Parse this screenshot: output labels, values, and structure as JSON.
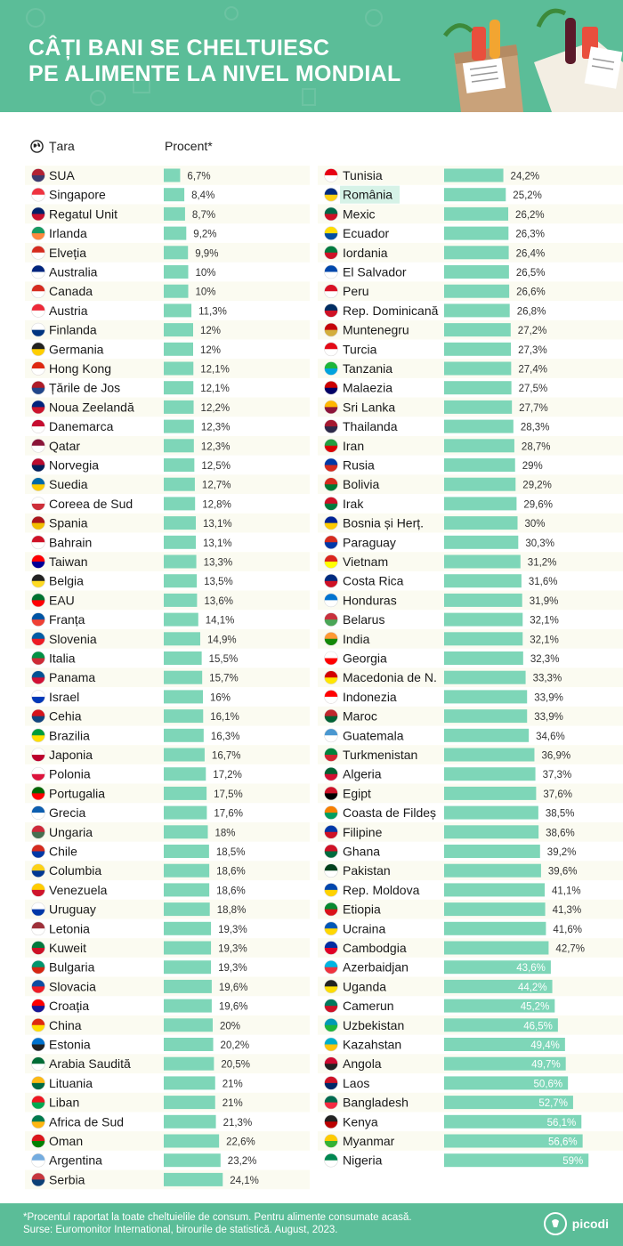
{
  "header": {
    "title_line1": "Câți bani se cheltuiesc",
    "title_line2": "pe alimente la nivel mondial"
  },
  "columns": {
    "country": "Țara",
    "percent": "Procent*"
  },
  "colors": {
    "brand": "#5bbd98",
    "bar": "#7ed6b8",
    "row_stripe": "#fbfbf1",
    "highlight": "#d6f2e7"
  },
  "highlighted_country": "România",
  "chart_data": {
    "type": "bar",
    "orientation": "horizontal",
    "xlim": [
      0,
      60
    ],
    "unit": "%",
    "categories": [
      "SUA",
      "Singapore",
      "Regatul Unit",
      "Irlanda",
      "Elveția",
      "Australia",
      "Canada",
      "Austria",
      "Finlanda",
      "Germania",
      "Hong Kong",
      "Țările de Jos",
      "Noua Zeelandă",
      "Danemarca",
      "Qatar",
      "Norvegia",
      "Suedia",
      "Coreea de Sud",
      "Spania",
      "Bahrain",
      "Taiwan",
      "Belgia",
      "EAU",
      "Franța",
      "Slovenia",
      "Italia",
      "Panama",
      "Israel",
      "Cehia",
      "Brazilia",
      "Japonia",
      "Polonia",
      "Portugalia",
      "Grecia",
      "Ungaria",
      "Chile",
      "Columbia",
      "Venezuela",
      "Uruguay",
      "Letonia",
      "Kuweit",
      "Bulgaria",
      "Slovacia",
      "Croația",
      "China",
      "Estonia",
      "Arabia Saudită",
      "Lituania",
      "Liban",
      "Africa de Sud",
      "Oman",
      "Argentina",
      "Serbia",
      "Tunisia",
      "România",
      "Mexic",
      "Ecuador",
      "Iordania",
      "El Salvador",
      "Peru",
      "Rep. Dominicană",
      "Muntenegru",
      "Turcia",
      "Tanzania",
      "Malaezia",
      "Sri Lanka",
      "Thailanda",
      "Iran",
      "Rusia",
      "Bolivia",
      "Irak",
      "Bosnia și Herț.",
      "Paraguay",
      "Vietnam",
      "Costa Rica",
      "Honduras",
      "Belarus",
      "India",
      "Georgia",
      "Macedonia de N.",
      "Indonezia",
      "Maroc",
      "Guatemala",
      "Turkmenistan",
      "Algeria",
      "Egipt",
      "Coasta de Fildeș",
      "Filipine",
      "Ghana",
      "Pakistan",
      "Rep. Moldova",
      "Etiopia",
      "Ucraina",
      "Cambodgia",
      "Azerbaidjan",
      "Uganda",
      "Camerun",
      "Uzbekistan",
      "Kazahstan",
      "Angola",
      "Laos",
      "Bangladesh",
      "Kenya",
      "Myanmar",
      "Nigeria"
    ],
    "values": [
      6.7,
      8.4,
      8.7,
      9.2,
      9.9,
      10,
      10,
      11.3,
      12,
      12,
      12.1,
      12.1,
      12.2,
      12.3,
      12.3,
      12.5,
      12.7,
      12.8,
      13.1,
      13.1,
      13.3,
      13.5,
      13.6,
      14.1,
      14.9,
      15.5,
      15.7,
      16,
      16.1,
      16.3,
      16.7,
      17.2,
      17.5,
      17.6,
      18,
      18.5,
      18.6,
      18.6,
      18.8,
      19.3,
      19.3,
      19.3,
      19.6,
      19.6,
      20,
      20.2,
      20.5,
      21,
      21,
      21.3,
      22.6,
      23.2,
      24.1,
      24.2,
      25.2,
      26.2,
      26.3,
      26.4,
      26.5,
      26.6,
      26.8,
      27.2,
      27.3,
      27.4,
      27.5,
      27.7,
      28.3,
      28.7,
      29,
      29.2,
      29.6,
      30,
      30.3,
      31.2,
      31.6,
      31.9,
      32.1,
      32.1,
      32.3,
      33.3,
      33.9,
      33.9,
      34.6,
      36.9,
      37.3,
      37.6,
      38.5,
      38.6,
      39.2,
      39.6,
      41.1,
      41.3,
      41.6,
      42.7,
      43.6,
      44.2,
      45.2,
      46.5,
      49.4,
      49.7,
      50.6,
      52.7,
      56.1,
      56.6,
      59
    ],
    "labels": [
      "6,7%",
      "8,4%",
      "8,7%",
      "9,2%",
      "9,9%",
      "10%",
      "10%",
      "11,3%",
      "12%",
      "12%",
      "12,1%",
      "12,1%",
      "12,2%",
      "12,3%",
      "12,3%",
      "12,5%",
      "12,7%",
      "12,8%",
      "13,1%",
      "13,1%",
      "13,3%",
      "13,5%",
      "13,6%",
      "14,1%",
      "14,9%",
      "15,5%",
      "15,7%",
      "16%",
      "16,1%",
      "16,3%",
      "16,7%",
      "17,2%",
      "17,5%",
      "17,6%",
      "18%",
      "18,5%",
      "18,6%",
      "18,6%",
      "18,8%",
      "19,3%",
      "19,3%",
      "19,3%",
      "19,6%",
      "19,6%",
      "20%",
      "20,2%",
      "20,5%",
      "21%",
      "21%",
      "21,3%",
      "22,6%",
      "23,2%",
      "24,1%",
      "24,2%",
      "25,2%",
      "26,2%",
      "26,3%",
      "26,4%",
      "26,5%",
      "26,6%",
      "26,8%",
      "27,2%",
      "27,3%",
      "27,4%",
      "27,5%",
      "27,7%",
      "28,3%",
      "28,7%",
      "29%",
      "29,2%",
      "29,6%",
      "30%",
      "30,3%",
      "31,2%",
      "31,6%",
      "31,9%",
      "32,1%",
      "32,1%",
      "32,3%",
      "33,3%",
      "33,9%",
      "33,9%",
      "34,6%",
      "36,9%",
      "37,3%",
      "37,6%",
      "38,5%",
      "38,6%",
      "39,2%",
      "39,6%",
      "41,1%",
      "41,3%",
      "41,6%",
      "42,7%",
      "43,6%",
      "44,2%",
      "45,2%",
      "46,5%",
      "49,4%",
      "49,7%",
      "50,6%",
      "52,7%",
      "56,1%",
      "56,6%",
      "59%"
    ],
    "flag_colors": [
      [
        "#b22234",
        "#3c3b6e"
      ],
      [
        "#ef3340",
        "#ffffff"
      ],
      [
        "#012169",
        "#c8102e"
      ],
      [
        "#169b62",
        "#ff883e"
      ],
      [
        "#d52b1e",
        "#ffffff"
      ],
      [
        "#00247d",
        "#ffffff"
      ],
      [
        "#d52b1e",
        "#ffffff"
      ],
      [
        "#ed2939",
        "#ffffff"
      ],
      [
        "#ffffff",
        "#003580"
      ],
      [
        "#222222",
        "#ffce00"
      ],
      [
        "#de2910",
        "#ffffff"
      ],
      [
        "#ae1c28",
        "#21468b"
      ],
      [
        "#00247d",
        "#cc142b"
      ],
      [
        "#c60c30",
        "#ffffff"
      ],
      [
        "#8a1538",
        "#ffffff"
      ],
      [
        "#ba0c2f",
        "#00205b"
      ],
      [
        "#006aa7",
        "#fecc00"
      ],
      [
        "#ffffff",
        "#cd2e3a"
      ],
      [
        "#aa151b",
        "#f1bf00"
      ],
      [
        "#ce1126",
        "#ffffff"
      ],
      [
        "#fe0000",
        "#000095"
      ],
      [
        "#222222",
        "#fdda24"
      ],
      [
        "#00732f",
        "#ff0000"
      ],
      [
        "#0055a4",
        "#ef4135"
      ],
      [
        "#005da4",
        "#ed1c24"
      ],
      [
        "#009246",
        "#ce2b37"
      ],
      [
        "#005293",
        "#d21034"
      ],
      [
        "#ffffff",
        "#0038b8"
      ],
      [
        "#d7141a",
        "#11457e"
      ],
      [
        "#009c3b",
        "#ffdf00"
      ],
      [
        "#ffffff",
        "#bc002d"
      ],
      [
        "#ffffff",
        "#dc143c"
      ],
      [
        "#006600",
        "#ff0000"
      ],
      [
        "#0d5eaf",
        "#ffffff"
      ],
      [
        "#ce2939",
        "#477050"
      ],
      [
        "#d52b1e",
        "#0039a6"
      ],
      [
        "#fcd116",
        "#003893"
      ],
      [
        "#ffcc00",
        "#cf142b"
      ],
      [
        "#ffffff",
        "#0038a8"
      ],
      [
        "#9e3039",
        "#ffffff"
      ],
      [
        "#007a3d",
        "#ce1126"
      ],
      [
        "#00966e",
        "#d62612"
      ],
      [
        "#0b4ea2",
        "#ee1c25"
      ],
      [
        "#ff0000",
        "#171796"
      ],
      [
        "#de2910",
        "#ffde00"
      ],
      [
        "#0072ce",
        "#222222"
      ],
      [
        "#006c35",
        "#ffffff"
      ],
      [
        "#fdb913",
        "#006a44"
      ],
      [
        "#ee161f",
        "#00a850"
      ],
      [
        "#007a4d",
        "#ffb612"
      ],
      [
        "#db161b",
        "#008000"
      ],
      [
        "#74acdf",
        "#ffffff"
      ],
      [
        "#c6363c",
        "#0c4076"
      ],
      [
        "#e70013",
        "#ffffff"
      ],
      [
        "#002b7f",
        "#fcd116"
      ],
      [
        "#006847",
        "#ce1126"
      ],
      [
        "#ffdd00",
        "#034ea2"
      ],
      [
        "#007a3d",
        "#ce1126"
      ],
      [
        "#0047ab",
        "#ffffff"
      ],
      [
        "#d91023",
        "#ffffff"
      ],
      [
        "#002d62",
        "#ce1126"
      ],
      [
        "#c40308",
        "#d3ae3b"
      ],
      [
        "#e30a17",
        "#ffffff"
      ],
      [
        "#1eb53a",
        "#00a3dd"
      ],
      [
        "#cc0001",
        "#010066"
      ],
      [
        "#ffb700",
        "#8d153a"
      ],
      [
        "#a51931",
        "#2d2a4a"
      ],
      [
        "#239f40",
        "#da0000"
      ],
      [
        "#0039a6",
        "#d52b1e"
      ],
      [
        "#d52b1e",
        "#007934"
      ],
      [
        "#ce1126",
        "#007a3d"
      ],
      [
        "#002395",
        "#fecb00"
      ],
      [
        "#d52b1e",
        "#0038a8"
      ],
      [
        "#da251d",
        "#ffff00"
      ],
      [
        "#002b7f",
        "#ce1126"
      ],
      [
        "#0073cf",
        "#ffffff"
      ],
      [
        "#c8313e",
        "#4aa657"
      ],
      [
        "#ff9933",
        "#138808"
      ],
      [
        "#ffffff",
        "#ff0000"
      ],
      [
        "#d20000",
        "#ffe600"
      ],
      [
        "#ff0000",
        "#ffffff"
      ],
      [
        "#c1272d",
        "#006233"
      ],
      [
        "#4997d0",
        "#ffffff"
      ],
      [
        "#00843d",
        "#d22630"
      ],
      [
        "#006233",
        "#d21034"
      ],
      [
        "#ce1126",
        "#000000"
      ],
      [
        "#f77f00",
        "#009e60"
      ],
      [
        "#0038a8",
        "#ce1126"
      ],
      [
        "#ce1126",
        "#006b3f"
      ],
      [
        "#01411c",
        "#ffffff"
      ],
      [
        "#0046ae",
        "#ffd200"
      ],
      [
        "#078930",
        "#da121a"
      ],
      [
        "#0057b7",
        "#ffd700"
      ],
      [
        "#032ea1",
        "#e00025"
      ],
      [
        "#00b5e2",
        "#ef3340"
      ],
      [
        "#222222",
        "#fcdc04"
      ],
      [
        "#007a5e",
        "#ce1126"
      ],
      [
        "#0099b5",
        "#1eb53a"
      ],
      [
        "#00afca",
        "#fec50c"
      ],
      [
        "#cc092f",
        "#222222"
      ],
      [
        "#ce1126",
        "#002868"
      ],
      [
        "#006a4e",
        "#f42a41"
      ],
      [
        "#222222",
        "#bb0000"
      ],
      [
        "#fecb00",
        "#34b233"
      ],
      [
        "#008751",
        "#ffffff"
      ]
    ]
  },
  "footer": {
    "note_line1": "*Procentul raportat la toate cheltuielile de consum. Pentru alimente consumate acasă.",
    "note_line2": "Surse: Euromonitor International, birourile de statistică. August, 2023.",
    "logo_text": "picodi"
  }
}
